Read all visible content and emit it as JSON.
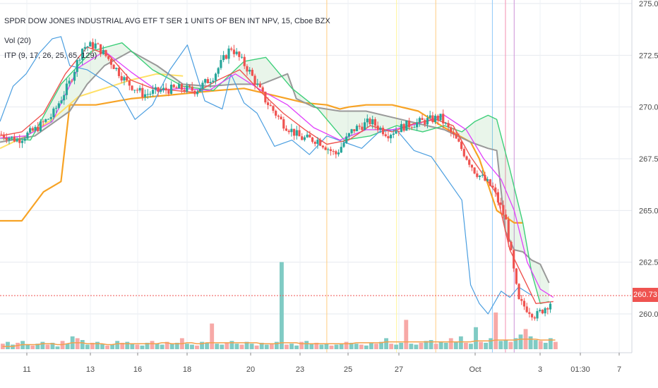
{
  "legend": {
    "title": "SPDR DOW JONES INDUSTRIAL AVG ETF T SER 1 UNITS OF BEN INT NPV, 15, Cboe BZX",
    "volume": "Vol (20)",
    "indicator": "ITP (9, 17, 26, 25, 65, 129)"
  },
  "price_tag": "260.73",
  "colors": {
    "up": "#26a69a",
    "down": "#ef5350",
    "blue": "#4a9ee0",
    "red_line": "#ef5350",
    "pink_line": "#e040fb",
    "green_line": "#3ecf7a",
    "gray_line": "#999999",
    "orange_line": "#f7a325",
    "yellow_line": "#ffe066",
    "vol_ma": "#f5a04a"
  },
  "chart_data": {
    "type": "line",
    "y_ticks": [
      "275.00",
      "272.50",
      "270.00",
      "267.50",
      "265.00",
      "262.50",
      "260.00"
    ],
    "ylim": [
      257.5,
      275.5
    ],
    "x_ticks": [
      "11",
      "13",
      "16",
      "18",
      "20",
      "23",
      "25",
      "27",
      "Oct",
      "3",
      "01:30",
      "7"
    ],
    "last_price": 260.73,
    "series": [
      {
        "key": "close",
        "x": [
          0,
          4,
          8,
          12,
          16,
          19,
          22,
          25,
          29,
          33,
          37,
          41,
          45,
          49,
          53,
          57,
          61,
          65,
          69,
          73,
          77,
          81,
          85,
          89,
          93,
          97,
          101,
          105,
          109,
          113,
          116,
          119,
          123,
          127
        ],
        "values": [
          268.7,
          268.4,
          268.9,
          269.6,
          271.2,
          272.9,
          273.0,
          272.3,
          271.2,
          270.6,
          270.8,
          270.9,
          270.8,
          271.5,
          272.9,
          271.8,
          270.3,
          269.2,
          268.5,
          268.4,
          267.7,
          268.9,
          269.3,
          268.7,
          269.1,
          269.3,
          269.5,
          268.3,
          266.9,
          266.1,
          264.6,
          260.6,
          259.9,
          260.7
        ]
      },
      {
        "key": "blue",
        "x": [
          0,
          3,
          6,
          9,
          12,
          14,
          16,
          20,
          23,
          27,
          31,
          35,
          39,
          43,
          47,
          51,
          53,
          56,
          59,
          63,
          67,
          71,
          75,
          79,
          83,
          87,
          91,
          95,
          99,
          103,
          106,
          108,
          110,
          112,
          115,
          117,
          119,
          122
        ],
        "values": [
          269.3,
          271.0,
          271.6,
          272.6,
          273.3,
          273.4,
          272.0,
          271.8,
          271.4,
          270.9,
          269.4,
          270.1,
          271.8,
          273.0,
          270.3,
          269.9,
          271.6,
          270.2,
          269.7,
          268.1,
          268.4,
          267.7,
          268.6,
          268.3,
          268.0,
          268.8,
          268.9,
          267.9,
          267.6,
          266.4,
          265.5,
          261.4,
          260.5,
          260.0,
          261.1,
          260.8,
          261.3,
          260.9
        ]
      },
      {
        "key": "red",
        "x": [
          0,
          5,
          10,
          15,
          20,
          25,
          30,
          35,
          40,
          45,
          50,
          55,
          60,
          65,
          70,
          75,
          80,
          85,
          90,
          95,
          100,
          104,
          108,
          111,
          114,
          117,
          120,
          123,
          127
        ],
        "values": [
          268.6,
          268.8,
          269.7,
          271.6,
          272.9,
          272.5,
          271.3,
          270.9,
          270.8,
          270.7,
          271.3,
          271.8,
          270.7,
          269.7,
          268.9,
          268.2,
          268.4,
          269.1,
          268.8,
          269.2,
          269.4,
          269.1,
          267.6,
          266.7,
          265.8,
          263.1,
          261.8,
          260.5,
          260.6
        ]
      },
      {
        "key": "pink",
        "x": [
          0,
          6,
          12,
          18,
          24,
          30,
          36,
          42,
          48,
          54,
          60,
          66,
          72,
          78,
          84,
          90,
          96,
          102,
          107,
          111,
          115,
          118,
          121,
          124,
          127
        ],
        "values": [
          268.5,
          268.6,
          269.3,
          271.9,
          272.7,
          271.7,
          270.8,
          270.9,
          270.8,
          271.6,
          270.8,
          270.1,
          269.0,
          268.4,
          268.9,
          268.9,
          269.2,
          269.6,
          268.9,
          267.5,
          266.5,
          265.0,
          262.5,
          261.2,
          260.8
        ]
      },
      {
        "key": "green",
        "x": [
          0,
          7,
          14,
          21,
          28,
          35,
          42,
          49,
          56,
          61,
          67,
          73,
          79,
          85,
          91,
          97,
          102,
          106,
          109,
          112,
          114,
          117,
          120,
          122,
          124,
          126
        ],
        "values": [
          268.5,
          268.4,
          271.1,
          272.7,
          273.1,
          271.8,
          271.0,
          270.8,
          272.2,
          272.4,
          270.9,
          269.9,
          268.4,
          268.6,
          269.1,
          268.8,
          269.1,
          268.8,
          269.3,
          269.6,
          269.4,
          267.0,
          264.4,
          262.0,
          260.5,
          260.6
        ]
      },
      {
        "key": "gray",
        "x": [
          0,
          8,
          16,
          20,
          24,
          30,
          36,
          42,
          48,
          54,
          60,
          66,
          68,
          72,
          78,
          84,
          90,
          96,
          102,
          108,
          112,
          114,
          116,
          118,
          120,
          122,
          124,
          126
        ],
        "values": [
          268.3,
          268.6,
          269.8,
          271.1,
          272.0,
          272.7,
          272.0,
          271.1,
          271.0,
          271.1,
          271.1,
          271.6,
          270.4,
          270.0,
          269.8,
          269.8,
          269.5,
          269.2,
          268.9,
          268.3,
          268.0,
          267.9,
          264.0,
          263.1,
          263.0,
          262.6,
          262.4,
          261.5
        ]
      },
      {
        "key": "orange",
        "x": [
          0,
          5,
          10,
          14,
          16,
          22,
          30,
          40,
          50,
          56,
          62,
          70,
          75,
          78,
          80,
          84,
          90,
          96,
          102,
          108,
          110,
          114,
          118,
          120
        ],
        "values": [
          264.5,
          264.5,
          265.9,
          266.4,
          270.1,
          270.1,
          270.4,
          270.6,
          270.8,
          270.9,
          270.6,
          270.2,
          270.1,
          269.9,
          270.0,
          270.1,
          270.1,
          269.8,
          269.0,
          268.3,
          267.5,
          265.0,
          264.4,
          264.4
        ]
      },
      {
        "key": "yellow",
        "x": [
          0,
          6,
          12,
          18,
          24,
          30,
          36,
          42
        ],
        "values": [
          268.0,
          268.6,
          269.4,
          270.5,
          270.9,
          271.3,
          271.6,
          271.5
        ]
      }
    ],
    "volume": {
      "bars": [
        6,
        8,
        5,
        7,
        9,
        5,
        4,
        6,
        8,
        5,
        7,
        3,
        9,
        6,
        14,
        12,
        10,
        5,
        7,
        8,
        6,
        4,
        5,
        9,
        7,
        8,
        6,
        5,
        4,
        7,
        9,
        6,
        5,
        8,
        6,
        7,
        12,
        6,
        5,
        4,
        8,
        7,
        28,
        6,
        5,
        7,
        9,
        6,
        5,
        8,
        6,
        4,
        7,
        5,
        6,
        8,
        7,
        5,
        6,
        4,
        8,
        9,
        6,
        7,
        5,
        6,
        4,
        5,
        6,
        8,
        7,
        6,
        5,
        4,
        7,
        6,
        8,
        12,
        6,
        5,
        7,
        8,
        6,
        5,
        7,
        9,
        10,
        6,
        8,
        7,
        12,
        8,
        14,
        7,
        6,
        9,
        8,
        7,
        12,
        16,
        9,
        10,
        8,
        12,
        16,
        22,
        14,
        10,
        9,
        7,
        12,
        8
      ],
      "spikes": [
        {
          "index": 56,
          "value": 95
        },
        {
          "index": 81,
          "value": 32
        },
        {
          "index": 95,
          "value": 24
        },
        {
          "index": 99,
          "value": 40
        }
      ],
      "ma": [
        3,
        3,
        3,
        4,
        5,
        5,
        5,
        5,
        6,
        6,
        6,
        5,
        5,
        6,
        7,
        7,
        7,
        6,
        6,
        6,
        6,
        5,
        5,
        6,
        6,
        6,
        6,
        6,
        6,
        6,
        6,
        6,
        7,
        7,
        6,
        6,
        6,
        7,
        7,
        6,
        6,
        7,
        7,
        7,
        7,
        7,
        7,
        7,
        7,
        7,
        7,
        7,
        6,
        6,
        6,
        6,
        7,
        7,
        7,
        7,
        6,
        6,
        6,
        6,
        6,
        6,
        6,
        6,
        6,
        6,
        6,
        7,
        7,
        7,
        7,
        7,
        7,
        8,
        8,
        8,
        8,
        8,
        8,
        8,
        8,
        8,
        8,
        8,
        8,
        8,
        8,
        8,
        8,
        8,
        8,
        9,
        9,
        9,
        9,
        10,
        10,
        10,
        10,
        10,
        11,
        11,
        11,
        11,
        10,
        10,
        10,
        10
      ]
    },
    "vertical_lines": [
      {
        "x": 75,
        "color": "#ffcc80"
      },
      {
        "x": 91,
        "color": "#fff59d"
      },
      {
        "x": 100,
        "color": "#ffcc80"
      },
      {
        "x": 113,
        "color": "#90caf9"
      },
      {
        "x": 116,
        "color": "#f48fb1"
      },
      {
        "x": 118,
        "color": "#ce93d8"
      }
    ]
  }
}
